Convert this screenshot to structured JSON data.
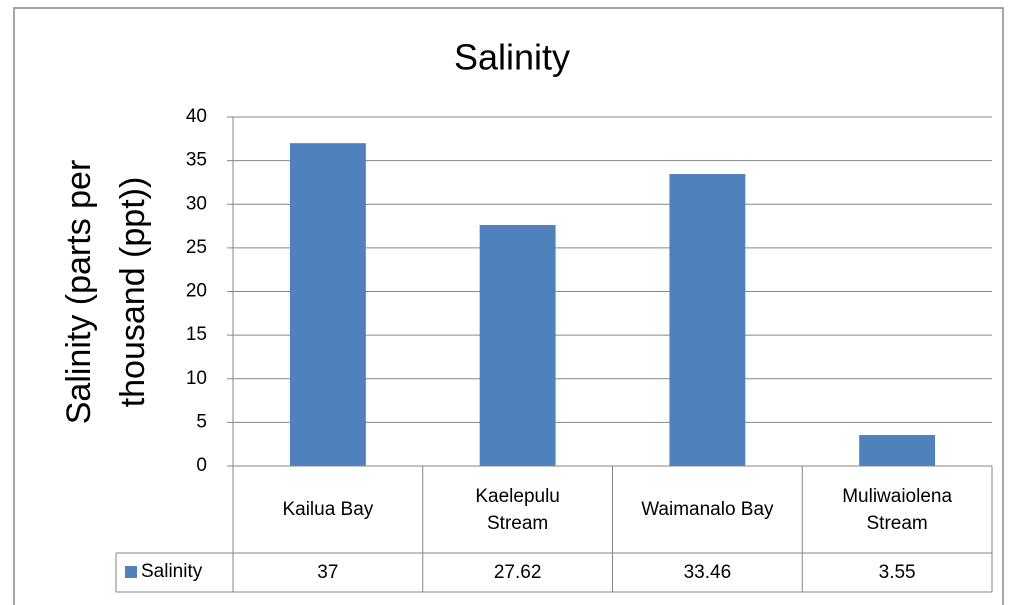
{
  "chart_data": {
    "type": "bar",
    "title": "Salinity",
    "y_label": "Salinity (parts per thousand (ppt))",
    "categories": [
      "Kailua Bay",
      "Kaelepulu Stream",
      "Waimanalo Bay",
      "Muliwaiolena Stream"
    ],
    "series": [
      {
        "name": "Salinity",
        "color": "#4f81bd",
        "values": [
          37,
          27.62,
          33.46,
          3.55
        ]
      }
    ],
    "ylim": [
      0,
      40
    ],
    "yticks": [
      0,
      5,
      10,
      15,
      20,
      25,
      30,
      35,
      40
    ],
    "grid": true,
    "data_table": true
  }
}
